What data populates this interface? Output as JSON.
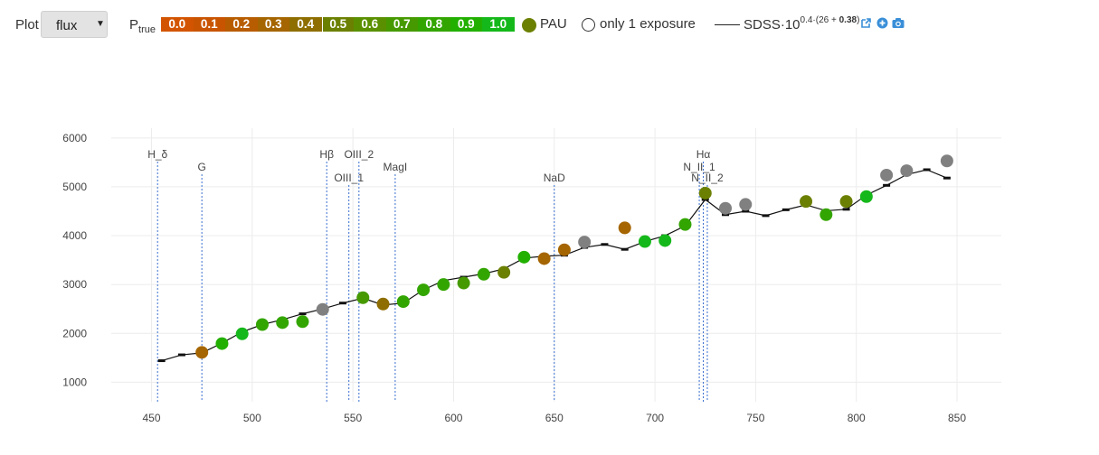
{
  "toolbar": {
    "plot_label": "Plot",
    "plot_value": "flux",
    "ptrue_label": "P",
    "ptrue_sub": "true",
    "scale": [
      {
        "label": "0.0",
        "color": "#d35400"
      },
      {
        "label": "0.1",
        "color": "#c95400"
      },
      {
        "label": "0.2",
        "color": "#b85c00"
      },
      {
        "label": "0.3",
        "color": "#a56500"
      },
      {
        "label": "0.4",
        "color": "#8e6e00"
      },
      {
        "label": "0.5",
        "color": "#6b8000"
      },
      {
        "label": "0.6",
        "color": "#5a9000"
      },
      {
        "label": "0.7",
        "color": "#469a00"
      },
      {
        "label": "0.8",
        "color": "#33a500"
      },
      {
        "label": "0.9",
        "color": "#22b000"
      },
      {
        "label": "1.0",
        "color": "#15b81a"
      }
    ],
    "pau_label": "PAU",
    "pau_color": "#6b8000",
    "one_exposure_label": "only 1 exposure",
    "sdss_label_main": "SDSS·10",
    "sdss_label_exp_a": "0.4·(26 + ",
    "sdss_label_exp_b": "0.38",
    "sdss_label_exp_c": ")",
    "icons": [
      "external-link-icon",
      "plus-circle-icon",
      "camera-icon"
    ],
    "icon_color": "#3a8fd8"
  },
  "chart_data": {
    "type": "scatter",
    "xlim": [
      430,
      872
    ],
    "ylim": [
      600,
      6200
    ],
    "xticks": [
      450,
      500,
      550,
      600,
      650,
      700,
      750,
      800,
      850
    ],
    "yticks": [
      1000,
      2000,
      3000,
      4000,
      5000,
      6000
    ],
    "grid": true,
    "pau_points": [
      {
        "x": 475,
        "y": 1610,
        "color": "#a56500"
      },
      {
        "x": 485,
        "y": 1790,
        "color": "#22b000"
      },
      {
        "x": 495,
        "y": 1990,
        "color": "#15b81a"
      },
      {
        "x": 505,
        "y": 2180,
        "color": "#33a500"
      },
      {
        "x": 515,
        "y": 2220,
        "color": "#33a500"
      },
      {
        "x": 525,
        "y": 2240,
        "color": "#33a500"
      },
      {
        "x": 535,
        "y": 2490,
        "color": "#808080"
      },
      {
        "x": 555,
        "y": 2730,
        "color": "#469a00"
      },
      {
        "x": 565,
        "y": 2600,
        "color": "#8e6e00"
      },
      {
        "x": 575,
        "y": 2650,
        "color": "#33a500"
      },
      {
        "x": 585,
        "y": 2890,
        "color": "#33a500"
      },
      {
        "x": 595,
        "y": 3000,
        "color": "#33a500"
      },
      {
        "x": 605,
        "y": 3030,
        "color": "#469a00"
      },
      {
        "x": 615,
        "y": 3210,
        "color": "#33a500"
      },
      {
        "x": 625,
        "y": 3250,
        "color": "#6b8000"
      },
      {
        "x": 635,
        "y": 3560,
        "color": "#22b000"
      },
      {
        "x": 645,
        "y": 3530,
        "color": "#a56500"
      },
      {
        "x": 655,
        "y": 3710,
        "color": "#a56500"
      },
      {
        "x": 665,
        "y": 3870,
        "color": "#808080"
      },
      {
        "x": 685,
        "y": 4160,
        "color": "#a56500"
      },
      {
        "x": 695,
        "y": 3880,
        "color": "#15b81a"
      },
      {
        "x": 705,
        "y": 3900,
        "color": "#15b81a"
      },
      {
        "x": 715,
        "y": 4230,
        "color": "#33a500"
      },
      {
        "x": 725,
        "y": 4870,
        "color": "#6b8000"
      },
      {
        "x": 735,
        "y": 4560,
        "color": "#808080"
      },
      {
        "x": 745,
        "y": 4640,
        "color": "#808080"
      },
      {
        "x": 775,
        "y": 4700,
        "color": "#6b8000"
      },
      {
        "x": 785,
        "y": 4430,
        "color": "#33a500"
      },
      {
        "x": 795,
        "y": 4700,
        "color": "#6b8000"
      },
      {
        "x": 805,
        "y": 4800,
        "color": "#15b81a"
      },
      {
        "x": 815,
        "y": 5240,
        "color": "#808080"
      },
      {
        "x": 825,
        "y": 5330,
        "color": "#808080"
      },
      {
        "x": 845,
        "y": 5530,
        "color": "#808080"
      }
    ],
    "sdss_line": {
      "x": [
        455,
        465,
        475,
        485,
        495,
        505,
        515,
        525,
        535,
        545,
        555,
        565,
        575,
        585,
        595,
        605,
        615,
        625,
        635,
        645,
        655,
        665,
        675,
        685,
        695,
        705,
        715,
        725,
        735,
        745,
        755,
        765,
        775,
        785,
        795,
        805,
        815,
        825,
        835,
        845
      ],
      "y": [
        1440,
        1560,
        1600,
        1800,
        2030,
        2180,
        2280,
        2400,
        2500,
        2620,
        2720,
        2580,
        2620,
        2890,
        3080,
        3150,
        3220,
        3320,
        3540,
        3580,
        3600,
        3760,
        3820,
        3720,
        3880,
        4000,
        4200,
        4740,
        4430,
        4500,
        4410,
        4530,
        4630,
        4510,
        4540,
        4830,
        5030,
        5250,
        5350,
        5180
      ]
    },
    "lines": [
      {
        "label": "H_δ",
        "x": 453,
        "level": 0
      },
      {
        "label": "G",
        "x": 475,
        "level": 1
      },
      {
        "label": "Hβ",
        "x": 537,
        "level": 0
      },
      {
        "label": "OIII_1",
        "x": 548,
        "level": 2
      },
      {
        "label": "OIII_2",
        "x": 553,
        "level": 0
      },
      {
        "label": "MagI",
        "x": 571,
        "level": 1
      },
      {
        "label": "NaD",
        "x": 650,
        "level": 2
      },
      {
        "label": "Hα",
        "x": 724,
        "level": 0
      },
      {
        "label": "N_II_1",
        "x": 722,
        "level": 1
      },
      {
        "label": "N_II_2",
        "x": 726,
        "level": 2
      }
    ]
  }
}
